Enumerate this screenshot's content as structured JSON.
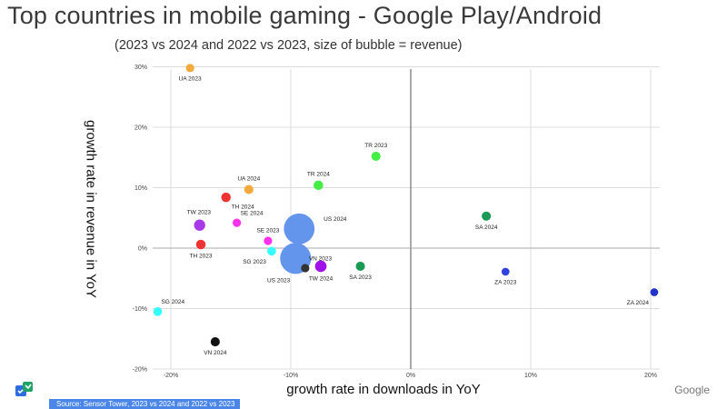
{
  "title": "Top countries in mobile gaming - Google Play/Android",
  "subtitle": "(2023 vs 2024 and 2022 vs 2023, size of bubble = revenue)",
  "brand": "Google",
  "source": "Source: Sensor Tower, 2023 vs 2024 and 2022 vs 2023",
  "chart_data": {
    "type": "scatter",
    "xlabel": "growth rate in downloads in YoY",
    "ylabel": "growth rate in revenue in YoY",
    "xlim": [
      -0.2,
      0.2
    ],
    "ylim": [
      -0.2,
      0.3
    ],
    "x_ticks": [
      -0.2,
      -0.1,
      0,
      0.1,
      0.2
    ],
    "x_tick_labels": [
      "-20%",
      "-10%",
      "0%",
      "10%",
      "20%"
    ],
    "y_ticks": [
      -0.2,
      -0.1,
      0,
      0.1,
      0.2,
      0.3
    ],
    "y_tick_labels": [
      "-20%",
      "-10%",
      "0%",
      "10%",
      "20%",
      "30%"
    ],
    "grid": true,
    "points": [
      {
        "label": "UA 2023",
        "x": -0.184,
        "y": 0.298,
        "size": 1,
        "color": "#f4a93b",
        "label_pos": "below"
      },
      {
        "label": "TR 2023",
        "x": -0.029,
        "y": 0.152,
        "size": 1.2,
        "color": "#44ee44",
        "label_pos": "above"
      },
      {
        "label": "TR 2024",
        "x": -0.077,
        "y": 0.104,
        "size": 1.3,
        "color": "#44ee44",
        "label_pos": "above"
      },
      {
        "label": "UA 2024",
        "x": -0.135,
        "y": 0.097,
        "size": 1.2,
        "color": "#f4a93b",
        "label_pos": "above"
      },
      {
        "label": "TH 2024",
        "x": -0.154,
        "y": 0.084,
        "size": 1.3,
        "color": "#ee3333",
        "label_pos": "below-right"
      },
      {
        "label": "TW 2023",
        "x": -0.176,
        "y": 0.038,
        "size": 1.8,
        "color": "#a63ae8",
        "label_pos": "above-left"
      },
      {
        "label": "SE 2024",
        "x": -0.145,
        "y": 0.042,
        "size": 1,
        "color": "#ff33ee",
        "label_pos": "above-right"
      },
      {
        "label": "US 2024",
        "x": -0.093,
        "y": 0.032,
        "size": 4.4,
        "color": "#6495ed",
        "label_pos": "right"
      },
      {
        "label": "SA 2024",
        "x": 0.063,
        "y": 0.053,
        "size": 1.2,
        "color": "#1a9a55",
        "label_pos": "below"
      },
      {
        "label": "SE 2023",
        "x": -0.119,
        "y": 0.012,
        "size": 1,
        "color": "#ff33ee",
        "label_pos": "above"
      },
      {
        "label": "TH 2023",
        "x": -0.175,
        "y": 0.006,
        "size": 1.3,
        "color": "#ee3333",
        "label_pos": "below"
      },
      {
        "label": "SG 2023",
        "x": -0.116,
        "y": -0.005,
        "size": 1.1,
        "color": "#33ffff",
        "label_pos": "below-left"
      },
      {
        "label": "US 2023",
        "x": -0.096,
        "y": -0.017,
        "size": 4.5,
        "color": "#6495ed",
        "label_pos": "below-left"
      },
      {
        "label": "VN 2023",
        "x": -0.088,
        "y": -0.033,
        "size": 1,
        "color": "#333333",
        "label_pos": "above-right"
      },
      {
        "label": "TW 2024",
        "x": -0.075,
        "y": -0.03,
        "size": 1.9,
        "color": "#a010e8",
        "label_pos": "below"
      },
      {
        "label": "SA 2023",
        "x": -0.042,
        "y": -0.03,
        "size": 1.2,
        "color": "#1a9a55",
        "label_pos": "below"
      },
      {
        "label": "ZA 2023",
        "x": 0.079,
        "y": -0.039,
        "size": 0.9,
        "color": "#3344dd",
        "label_pos": "below"
      },
      {
        "label": "ZA 2024",
        "x": 0.203,
        "y": -0.073,
        "size": 0.9,
        "color": "#2233cc",
        "label_pos": "below-left"
      },
      {
        "label": "SG 2024",
        "x": -0.211,
        "y": -0.105,
        "size": 1.1,
        "color": "#33ffff",
        "label_pos": "above-right"
      },
      {
        "label": "VN 2024",
        "x": -0.163,
        "y": -0.155,
        "size": 1.2,
        "color": "#111111",
        "label_pos": "below"
      }
    ]
  }
}
